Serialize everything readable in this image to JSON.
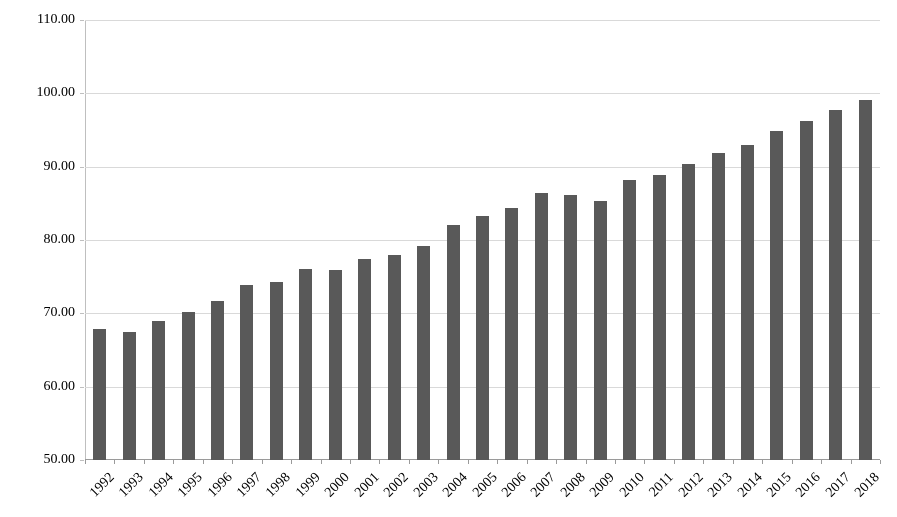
{
  "chart_data": {
    "type": "bar",
    "title": "",
    "xlabel": "",
    "ylabel": "",
    "categories": [
      "1992",
      "1993",
      "1994",
      "1995",
      "1996",
      "1997",
      "1998",
      "1999",
      "2000",
      "2001",
      "2002",
      "2003",
      "2004",
      "2005",
      "2006",
      "2007",
      "2008",
      "2009",
      "2010",
      "2011",
      "2012",
      "2013",
      "2014",
      "2015",
      "2016",
      "2017",
      "2018"
    ],
    "values": [
      67.8,
      67.4,
      69.0,
      70.2,
      71.7,
      73.8,
      74.3,
      76.0,
      75.9,
      77.4,
      77.9,
      79.2,
      82.0,
      83.3,
      84.4,
      86.4,
      86.1,
      85.3,
      88.2,
      88.8,
      90.3,
      91.9,
      93.0,
      94.9,
      96.2,
      97.7,
      99.1
    ],
    "ylim": [
      50,
      110
    ],
    "ytick_step": 10,
    "ytick_labels": [
      "50.00",
      "60.00",
      "70.00",
      "80.00",
      "90.00",
      "100.00",
      "110.00"
    ],
    "grid": true,
    "legend": "none",
    "bar_color": "#595959",
    "gridline_color": "#d9d9d9",
    "axis_color": "#9a9a9a",
    "text_color": "#000000"
  }
}
